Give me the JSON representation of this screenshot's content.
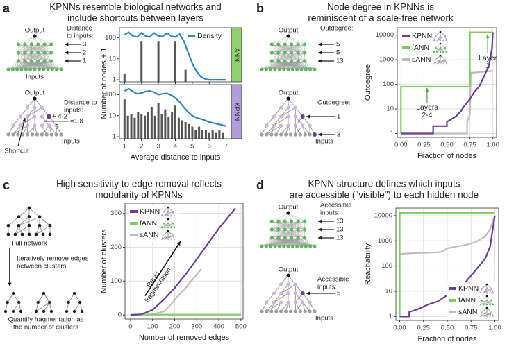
{
  "chart_data": [
    {
      "type": "facet-bar",
      "letter": "a",
      "title": [
        "KPNNs resemble biological networks and",
        "include shortcuts between layers"
      ],
      "xlabel": "Average distance to inputs",
      "ylabel": "Number of nodes + 1",
      "xlim": [
        0.7,
        7.3
      ],
      "xticks": [
        1,
        2,
        3,
        4,
        5,
        6,
        7
      ],
      "ylim": [
        0.8,
        300
      ],
      "yticks": [
        1,
        10,
        100
      ],
      "log_y": true,
      "grid": false,
      "bar_color": "#555555",
      "line_color": "#2e86c1",
      "line_name": "Density",
      "legend": "top-right",
      "facets": [
        {
          "name": "ANN",
          "color": "#8fd16f",
          "x": [
            1,
            2,
            3,
            4,
            4.6
          ],
          "values": [
            2,
            70,
            70,
            70,
            3
          ],
          "density_x": [
            1,
            1.25,
            1.5,
            1.75,
            2,
            2.25,
            2.5,
            2.75,
            3,
            3.25,
            3.5,
            3.75,
            4,
            4.25,
            4.5,
            4.75,
            5,
            5.25,
            5.5,
            5.75,
            6,
            6.25,
            6.5,
            6.75,
            7
          ],
          "density": [
            140,
            180,
            120,
            110,
            170,
            120,
            110,
            170,
            120,
            115,
            170,
            120,
            110,
            150,
            70,
            20,
            6,
            2.5,
            1.4,
            1.1,
            1,
            1,
            1,
            1,
            1
          ]
        },
        {
          "name": "KPNN",
          "color": "#b39ddb",
          "x": [
            1,
            1.2,
            1.4,
            1.6,
            1.8,
            2,
            2.2,
            2.4,
            2.6,
            2.8,
            3,
            3.2,
            3.4,
            3.6,
            3.8,
            4,
            4.2,
            4.4,
            4.6,
            4.8,
            5,
            5.2,
            5.4,
            5.6,
            5.8,
            6,
            6.2,
            6.4,
            6.6,
            6.8
          ],
          "values": [
            60,
            10,
            12,
            8,
            15,
            12,
            10,
            15,
            25,
            10,
            40,
            12,
            20,
            9,
            15,
            30,
            8,
            6,
            5,
            4,
            3,
            2,
            3,
            2,
            2,
            1.5,
            2,
            1.5,
            2,
            1.5
          ],
          "density_x": [
            1,
            1.25,
            1.5,
            1.75,
            2,
            2.25,
            2.5,
            2.75,
            3,
            3.25,
            3.5,
            3.75,
            4,
            4.25,
            4.5,
            4.75,
            5,
            5.25,
            5.5,
            5.75,
            6,
            6.25,
            6.5,
            6.75,
            7
          ],
          "density": [
            150,
            190,
            140,
            110,
            120,
            140,
            150,
            130,
            100,
            110,
            115,
            95,
            70,
            45,
            25,
            15,
            10,
            8,
            7,
            6,
            5,
            4.5,
            4,
            3.6,
            3.2
          ]
        }
      ]
    },
    {
      "type": "line",
      "letter": "b",
      "title": [
        "Node degree in KPNNs is",
        "reminiscent of a scale-free network"
      ],
      "xlabel": "Fraction of nodes",
      "ylabel": "Outdegree",
      "xlim": [
        -0.04,
        1.04
      ],
      "xticks": [
        {
          "value": 0,
          "label": "0.00"
        },
        {
          "value": 0.25,
          "label": "0.25"
        },
        {
          "value": 0.5,
          "label": "0.50"
        },
        {
          "value": 0.75,
          "label": "0.75"
        },
        {
          "value": 1,
          "label": "1.00"
        }
      ],
      "ylim": [
        0.7,
        20000
      ],
      "yticks": [
        1,
        10,
        100,
        1000,
        10000
      ],
      "log_y": true,
      "grid": true,
      "legend": "top-left",
      "annotations": [
        [
          "Layers",
          "2-4"
        ],
        [
          "Layer",
          "1"
        ]
      ],
      "series": [
        {
          "name": "KPNN",
          "color": "#6a3d9a",
          "x": [
            0,
            0.35,
            0.35,
            0.5,
            0.5,
            0.6,
            0.65,
            0.7,
            0.75,
            0.8,
            0.85,
            0.9,
            0.95,
            0.97,
            0.99,
            1
          ],
          "values": [
            1,
            1,
            2,
            2,
            3,
            5,
            8,
            15,
            25,
            50,
            80,
            200,
            500,
            1000,
            3000,
            13000
          ]
        },
        {
          "name": "fANN",
          "color": "#7ccf5a",
          "x": [
            0,
            0,
            0.75,
            0.75,
            1
          ],
          "values": [
            1,
            80,
            80,
            13000,
            13000
          ]
        },
        {
          "name": "sANN",
          "color": "#bdbdbd",
          "x": [
            0,
            0.72,
            0.72,
            0.75,
            0.76,
            0.78,
            0.8,
            1
          ],
          "values": [
            1,
            1,
            3,
            6,
            300,
            300,
            300,
            350
          ]
        }
      ]
    },
    {
      "type": "line",
      "letter": "c",
      "title": [
        "High sensitivity to edge removal reflects",
        "modularity of KPNNs"
      ],
      "xlabel": "Number of removed edges",
      "ylabel": "Number of clusters",
      "xlim": [
        -25,
        510
      ],
      "xticks": [
        0,
        100,
        200,
        300,
        400,
        500
      ],
      "ylim": [
        -12,
        330
      ],
      "yticks": [
        0,
        100,
        200,
        300
      ],
      "log_y": false,
      "grid": true,
      "legend": "top-left",
      "annotations": [
        [
          "Rapid",
          "fragmentation"
        ]
      ],
      "series": [
        {
          "name": "KPNN",
          "color": "#6a3d9a",
          "x": [
            0,
            50,
            100,
            150,
            200,
            250,
            300,
            350,
            400,
            450,
            475
          ],
          "values": [
            0,
            2,
            15,
            45,
            80,
            120,
            165,
            210,
            255,
            295,
            315
          ]
        },
        {
          "name": "fANN",
          "color": "#7ccf5a",
          "x": [
            0,
            500
          ],
          "values": [
            1,
            1
          ]
        },
        {
          "name": "sANN",
          "color": "#bdbdbd",
          "x": [
            0,
            100,
            150,
            175,
            200,
            250,
            300,
            320
          ],
          "values": [
            0,
            2,
            10,
            25,
            45,
            80,
            120,
            135
          ]
        }
      ]
    },
    {
      "type": "line",
      "letter": "d",
      "title": [
        "KPNN structure defines which inputs",
        "are accessible (\"visible\") to each hidden node"
      ],
      "xlabel": "Fraction of nodes",
      "ylabel": "Reachability",
      "xlim": [
        -0.04,
        1.04
      ],
      "xticks": [
        {
          "value": 0,
          "label": "0.00"
        },
        {
          "value": 0.25,
          "label": "0.25"
        },
        {
          "value": 0.5,
          "label": "0.50"
        },
        {
          "value": 0.75,
          "label": "0.75"
        },
        {
          "value": 1,
          "label": "1.00"
        }
      ],
      "ylim": [
        0.7,
        20000
      ],
      "yticks": [
        1,
        10,
        100,
        1000,
        10000
      ],
      "log_y": true,
      "grid": true,
      "legend": "bottom-right",
      "series": [
        {
          "name": "KPNN",
          "color": "#6a3d9a",
          "x": [
            0,
            0.1,
            0.1,
            0.2,
            0.3,
            0.4,
            0.5,
            0.6,
            0.7,
            0.8,
            0.9,
            0.95,
            1
          ],
          "values": [
            1,
            1,
            1.5,
            2,
            3,
            4,
            7,
            12,
            25,
            70,
            200,
            600,
            10000
          ]
        },
        {
          "name": "fANN",
          "color": "#7ccf5a",
          "x": [
            0,
            0,
            1
          ],
          "values": [
            1,
            13000,
            13000
          ]
        },
        {
          "name": "sANN",
          "color": "#bdbdbd",
          "x": [
            0,
            0,
            0.1,
            0.2,
            0.3,
            0.4,
            0.45,
            0.5,
            0.6,
            0.7,
            0.8,
            0.9,
            0.95,
            1
          ],
          "values": [
            1,
            300,
            320,
            330,
            340,
            350,
            380,
            500,
            600,
            700,
            900,
            1500,
            3000,
            10000
          ]
        }
      ]
    }
  ],
  "diagrams": [
    {
      "ann": {
        "top": "Output",
        "note": [
          "Distance",
          "to inputs:"
        ],
        "levels": [
          3,
          2,
          1
        ],
        "bottom": "Inputs"
      },
      "kpnn": {
        "top": "Output",
        "note": [
          "Distance to",
          "inputs:"
        ],
        "formula": [
          "1 + 4·2",
          "5",
          "=1.8"
        ],
        "callout": "Shortcut",
        "bottom": "Inputs"
      }
    },
    {
      "ann": {
        "top": "Output",
        "note": [
          "Outdegree:"
        ],
        "levels": [
          5,
          5,
          13
        ]
      },
      "kpnn": {
        "top": "Output",
        "note": [
          "Outdegree:"
        ],
        "levels": [
          1,
          3
        ],
        "bottom": "Inputs"
      }
    },
    {
      "steps": [
        [
          "Full network"
        ],
        [
          "Iteratively remove edges",
          "between clusters"
        ],
        [
          "Quantify fragmentation as",
          "the number of clusters"
        ]
      ]
    },
    {
      "ann": {
        "top": "Output",
        "note": [
          "Accessible",
          "inputs:"
        ],
        "levels": [
          13,
          13,
          13
        ]
      },
      "kpnn": {
        "top": "Output",
        "note": [
          "Accessible",
          "inputs:"
        ],
        "levels": [
          5
        ],
        "bottom": "Inputs"
      }
    }
  ]
}
